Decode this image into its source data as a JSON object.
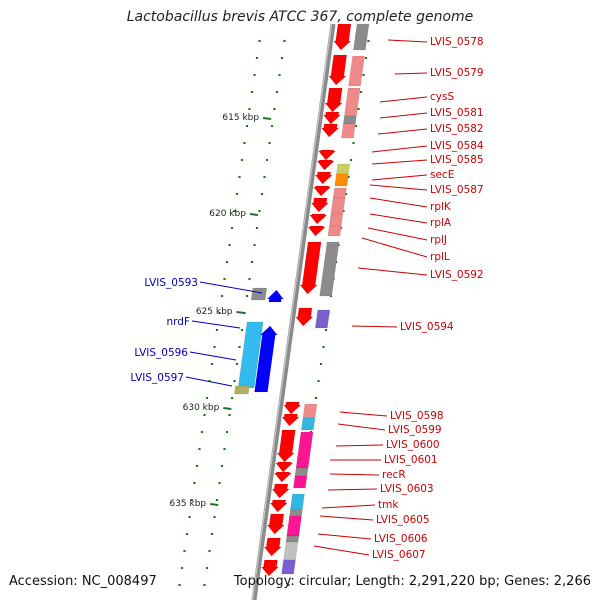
{
  "title": "Lactobacillus brevis ATCC 367, complete genome",
  "accession": "Accession: NC_008497",
  "summary": "Topology: circular; Length: 2,291,220 bp; Genes: 2,266",
  "colors": {
    "backbone": "#8a8a8a",
    "forward_gene_label": "#cc0000",
    "reverse_gene_label": "#0000bb",
    "tick": "#1a7a1a",
    "red": "#ff0000",
    "pink": "#f08a8a",
    "grey": "#8c8c8c",
    "magenta": "#ff1493",
    "lightblue": "#33bbee",
    "blue": "#0000ff",
    "purple": "#7a5fd0"
  },
  "scale_ticks": [
    {
      "label": "615 kbp"
    },
    {
      "label": "620 kbp"
    },
    {
      "label": "625 kbp"
    },
    {
      "label": "630 kbp"
    },
    {
      "label": "635 kbp"
    }
  ],
  "forward_genes": [
    {
      "name": "LVIS_0578"
    },
    {
      "name": "LVIS_0579"
    },
    {
      "name": "cysS"
    },
    {
      "name": "LVIS_0581"
    },
    {
      "name": "LVIS_0582"
    },
    {
      "name": "LVIS_0584"
    },
    {
      "name": "LVIS_0585"
    },
    {
      "name": "secE"
    },
    {
      "name": "LVIS_0587"
    },
    {
      "name": "rplK"
    },
    {
      "name": "rplA"
    },
    {
      "name": "rplJ"
    },
    {
      "name": "rplL"
    },
    {
      "name": "LVIS_0592"
    },
    {
      "name": "LVIS_0594"
    },
    {
      "name": "LVIS_0598"
    },
    {
      "name": "LVIS_0599"
    },
    {
      "name": "LVIS_0600"
    },
    {
      "name": "LVIS_0601"
    },
    {
      "name": "recR"
    },
    {
      "name": "LVIS_0603"
    },
    {
      "name": "tmk"
    },
    {
      "name": "LVIS_0605"
    },
    {
      "name": "LVIS_0606"
    },
    {
      "name": "LVIS_0607"
    }
  ],
  "reverse_genes": [
    {
      "name": "LVIS_0593"
    },
    {
      "name": "nrdF"
    },
    {
      "name": "LVIS_0596"
    },
    {
      "name": "LVIS_0597"
    }
  ]
}
